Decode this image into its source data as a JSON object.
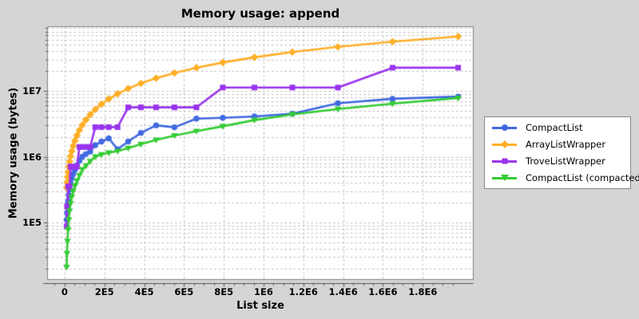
{
  "window": {
    "background": "#d5d5d5",
    "plot_background": "#ffffff",
    "grid_color": "#bdbdbd",
    "border_color": "#808080",
    "axis_color": "#555555"
  },
  "title": "Memory usage: append",
  "chart_data": {
    "type": "line",
    "title": "Memory usage: append",
    "xlabel": "List size",
    "ylabel": "Memory usage (bytes)",
    "x_scale": "linear",
    "y_scale": "log",
    "grid": "dashed",
    "legend_position": "right",
    "xlim": [
      -86000,
      2054000
    ],
    "ylim": [
      13600,
      94600000
    ],
    "x_ticks": [
      {
        "v": 0,
        "label": "0"
      },
      {
        "v": 200000,
        "label": "2E5"
      },
      {
        "v": 400000,
        "label": "4E5"
      },
      {
        "v": 600000,
        "label": "6E5"
      },
      {
        "v": 800000,
        "label": "8E5"
      },
      {
        "v": 1000000,
        "label": "1E6"
      },
      {
        "v": 1200000,
        "label": "1.2E6"
      },
      {
        "v": 1400000,
        "label": "1.4E6"
      },
      {
        "v": 1600000,
        "label": "1.6E6"
      },
      {
        "v": 1800000,
        "label": "1.8E6"
      }
    ],
    "x_minor_tick_step": 50000,
    "y_ticks": [
      {
        "v": 100000,
        "label": "1E5"
      },
      {
        "v": 1000000,
        "label": "1E6"
      },
      {
        "v": 10000000,
        "label": "1E7"
      }
    ],
    "x": [
      10000,
      12000,
      14400,
      17280,
      20736,
      24883,
      29860,
      35832,
      42998,
      51598,
      61917,
      74301,
      89161,
      106993,
      128392,
      154070,
      184884,
      221861,
      266233,
      319480,
      383376,
      460051,
      552061,
      662473,
      794968,
      953962,
      1144754,
      1373705,
      1648446,
      1978135
    ],
    "series": [
      {
        "name": "CompactList",
        "color": "#4169e1",
        "marker": "circle",
        "values": [
          110000,
          140000,
          170000,
          210000,
          260000,
          320000,
          390000,
          470000,
          550000,
          630000,
          740000,
          870000,
          1000000,
          1100000,
          1200000,
          1500000,
          1700000,
          1900000,
          1300000,
          1700000,
          2300000,
          3000000,
          2800000,
          3800000,
          3900000,
          4100000,
          4500000,
          6500000,
          7600000,
          8200000
        ]
      },
      {
        "name": "ArrayListWrapper",
        "color": "#ffaf27",
        "marker": "diamond",
        "values": [
          340000,
          408000,
          490000,
          587000,
          705000,
          846000,
          1015000,
          1218000,
          1462000,
          1754000,
          2105000,
          2526000,
          3031000,
          3637000,
          4365000,
          5238000,
          6285000,
          7543000,
          9051000,
          10862000,
          13034000,
          15642000,
          18770000,
          22524000,
          27029000,
          32435000,
          38922000,
          46706000,
          56047000,
          67257000
        ]
      },
      {
        "name": "TroveListWrapper",
        "color": "#9933ee",
        "marker": "square",
        "values": [
          88000,
          176000,
          176000,
          352000,
          352000,
          352000,
          704000,
          704000,
          704000,
          704000,
          704000,
          1408000,
          1408000,
          1408000,
          1408000,
          2816000,
          2816000,
          2816000,
          2816000,
          5632000,
          5632000,
          5632000,
          5632000,
          5632000,
          11264000,
          11264000,
          11264000,
          11264000,
          22528000,
          22528000
        ]
      },
      {
        "name": "CompactList (compacted)",
        "color": "#33cc33",
        "marker": "triangle-down",
        "values": [
          21000,
          34000,
          52000,
          78000,
          110000,
          150000,
          195000,
          245000,
          300000,
          360000,
          430000,
          520000,
          640000,
          730000,
          850000,
          1000000,
          1080000,
          1150000,
          1220000,
          1350000,
          1550000,
          1800000,
          2100000,
          2450000,
          2900000,
          3600000,
          4400000,
          5300000,
          6400000,
          7800000
        ]
      }
    ]
  }
}
